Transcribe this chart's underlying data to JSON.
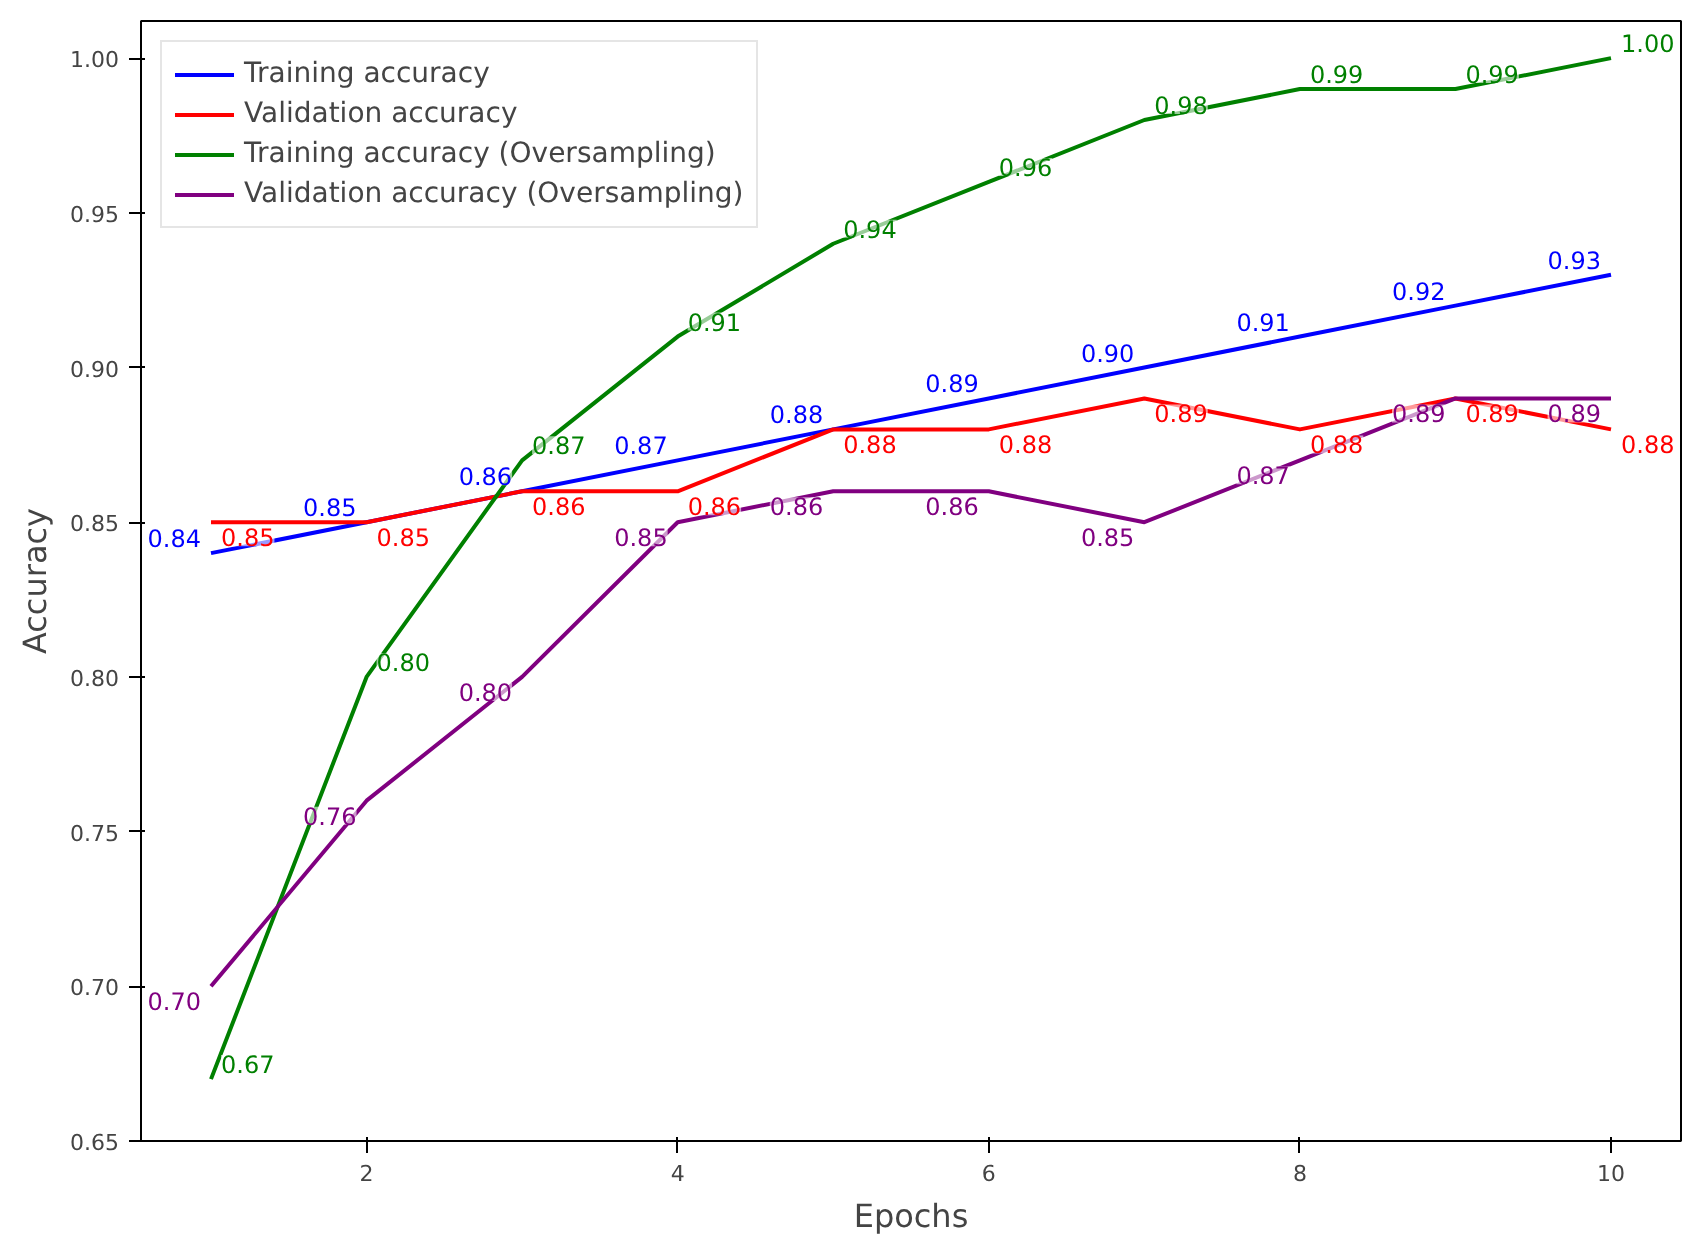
{
  "chart_data": {
    "type": "line",
    "xlabel": "Epochs",
    "ylabel": "Accuracy",
    "x": [
      1,
      2,
      3,
      4,
      5,
      6,
      7,
      8,
      9,
      10
    ],
    "series": [
      {
        "name": "Training accuracy",
        "color": "#0000ff",
        "values": [
          0.84,
          0.85,
          0.86,
          0.87,
          0.88,
          0.89,
          0.9,
          0.91,
          0.92,
          0.93
        ],
        "value_labels": [
          "0.84",
          "0.85",
          "0.86",
          "0.87",
          "0.88",
          "0.89",
          "0.90",
          "0.91",
          "0.92",
          "0.93"
        ]
      },
      {
        "name": "Validation accuracy",
        "color": "#ff0000",
        "values": [
          0.85,
          0.85,
          0.86,
          0.86,
          0.88,
          0.88,
          0.89,
          0.88,
          0.89,
          0.88
        ],
        "value_labels": [
          "0.85",
          "0.85",
          "0.86",
          "0.86",
          "0.88",
          "0.88",
          "0.89",
          "0.88",
          "0.89",
          "0.88"
        ]
      },
      {
        "name": "Training accuracy (Oversampling)",
        "color": "#008000",
        "values": [
          0.67,
          0.8,
          0.87,
          0.91,
          0.94,
          0.96,
          0.98,
          0.99,
          0.99,
          1.0
        ],
        "value_labels": [
          "0.67",
          "0.80",
          "0.87",
          "0.91",
          "0.94",
          "0.96",
          "0.98",
          "0.99",
          "0.99",
          "1.00"
        ]
      },
      {
        "name": "Validation accuracy (Oversampling)",
        "color": "#800080",
        "values": [
          0.7,
          0.76,
          0.8,
          0.85,
          0.86,
          0.86,
          0.85,
          0.87,
          0.89,
          0.89
        ],
        "value_labels": [
          "0.70",
          "0.76",
          "0.80",
          "0.85",
          "0.86",
          "0.86",
          "0.85",
          "0.87",
          "0.89",
          "0.89"
        ]
      }
    ],
    "xlim": [
      0.55,
      10.45
    ],
    "ylim": [
      0.65,
      1.012
    ],
    "xticks": [
      2,
      4,
      6,
      8,
      10
    ],
    "yticks": [
      {
        "value": 0.65,
        "label": "0.65"
      },
      {
        "value": 0.7,
        "label": "0.70"
      },
      {
        "value": 0.75,
        "label": "0.75"
      },
      {
        "value": 0.8,
        "label": "0.80"
      },
      {
        "value": 0.85,
        "label": "0.85"
      },
      {
        "value": 0.9,
        "label": "0.90"
      },
      {
        "value": 0.95,
        "label": "0.95"
      },
      {
        "value": 1.0,
        "label": "1.00"
      }
    ],
    "legend": "top left",
    "grid": false,
    "marker": "none",
    "line_style": "solid"
  }
}
